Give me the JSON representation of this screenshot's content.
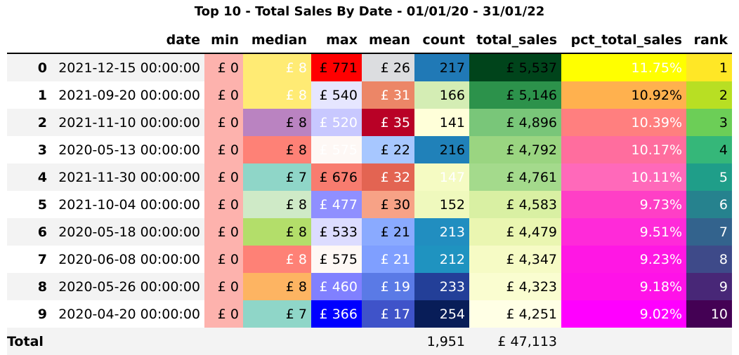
{
  "chart_data": {
    "type": "table",
    "title": "Top 10 - Total Sales By Date - 01/01/20 - 31/01/22",
    "columns": [
      "",
      "date",
      "min",
      "median",
      "max",
      "mean",
      "count",
      "total_sales",
      "pct_total_sales",
      "rank"
    ],
    "rows": [
      {
        "index": "0",
        "cells": [
          "2021-12-15 00:00:00",
          "£ 0",
          "£ 8",
          "£ 771",
          "£ 26",
          "217",
          "£ 5,537",
          "11.75%",
          "1"
        ]
      },
      {
        "index": "1",
        "cells": [
          "2021-09-20 00:00:00",
          "£ 0",
          "£ 8",
          "£ 540",
          "£ 31",
          "166",
          "£ 5,146",
          "10.92%",
          "2"
        ]
      },
      {
        "index": "2",
        "cells": [
          "2021-11-10 00:00:00",
          "£ 0",
          "£ 8",
          "£ 520",
          "£ 35",
          "141",
          "£ 4,896",
          "10.39%",
          "3"
        ]
      },
      {
        "index": "3",
        "cells": [
          "2020-05-13 00:00:00",
          "£ 0",
          "£ 8",
          "£ 575",
          "£ 22",
          "216",
          "£ 4,792",
          "10.17%",
          "4"
        ]
      },
      {
        "index": "4",
        "cells": [
          "2021-11-30 00:00:00",
          "£ 0",
          "£ 7",
          "£ 676",
          "£ 32",
          "147",
          "£ 4,761",
          "10.11%",
          "5"
        ]
      },
      {
        "index": "5",
        "cells": [
          "2021-10-04 00:00:00",
          "£ 0",
          "£ 8",
          "£ 477",
          "£ 30",
          "152",
          "£ 4,583",
          "9.73%",
          "6"
        ]
      },
      {
        "index": "6",
        "cells": [
          "2020-05-18 00:00:00",
          "£ 0",
          "£ 8",
          "£ 533",
          "£ 21",
          "213",
          "£ 4,479",
          "9.51%",
          "7"
        ]
      },
      {
        "index": "7",
        "cells": [
          "2020-06-08 00:00:00",
          "£ 0",
          "£ 8",
          "£ 575",
          "£ 21",
          "212",
          "£ 4,347",
          "9.23%",
          "8"
        ]
      },
      {
        "index": "8",
        "cells": [
          "2020-05-26 00:00:00",
          "£ 0",
          "£ 8",
          "£ 460",
          "£ 19",
          "233",
          "£ 4,323",
          "9.18%",
          "9"
        ]
      },
      {
        "index": "9",
        "cells": [
          "2020-04-20 00:00:00",
          "£ 0",
          "£ 7",
          "£ 366",
          "£ 17",
          "254",
          "£ 4,251",
          "9.02%",
          "10"
        ]
      }
    ],
    "footer": {
      "label": "Total",
      "cells": [
        "",
        "",
        "",
        "",
        "",
        "1,951",
        "£ 47,113",
        "",
        ""
      ]
    },
    "cell_colors": [
      [
        "",
        "#fdb2ad",
        "#ffeb74",
        "#ff0000",
        "#dcdde0",
        "#2079b6",
        "#00441b",
        "#ffff00",
        "#ffe726"
      ],
      [
        "",
        "#fdb2ad",
        "#ffeb74",
        "#e6e6ff",
        "#ec8667",
        "#d4edb4",
        "#2c924b",
        "#ffb14e",
        "#b8df23"
      ],
      [
        "",
        "#fdb2ad",
        "#ba83c1",
        "#c8c8ff",
        "#b90126",
        "#ffffd9",
        "#79c679",
        "#ff7f7f",
        "#6cce57"
      ],
      [
        "",
        "#fdb2ad",
        "#fe8176",
        "#fef8f5",
        "#a7c7ff",
        "#2081b9",
        "#9ad581",
        "#ff6d9e",
        "#35b779"
      ],
      [
        "",
        "#fdb2ad",
        "#8fd6c8",
        "#f87c6f",
        "#e36452",
        "#f5fbc3",
        "#a4da8c",
        "#ff69ba",
        "#1f9e89"
      ],
      [
        "",
        "#fdb2ad",
        "#cfeac7",
        "#8f8fff",
        "#f7a286",
        "#eff9bd",
        "#d9f0a3",
        "#ff3fc6",
        "#26828e"
      ],
      [
        "",
        "#fdb2ad",
        "#b3de6a",
        "#dcdcff",
        "#8aaaff",
        "#218ec0",
        "#eaf6b1",
        "#ff2ad9",
        "#33638d"
      ],
      [
        "",
        "#fdb2ad",
        "#fe8176",
        "#fef8f5",
        "#7f9fff",
        "#1f93c0",
        "#f6fbc5",
        "#ff17e4",
        "#3e4a89"
      ],
      [
        "",
        "#fdb2ad",
        "#fdb462",
        "#8080ff",
        "#5a7ae6",
        "#233f98",
        "#fafdd0",
        "#ff12e8",
        "#482777"
      ],
      [
        "",
        "#fdb2ad",
        "#8fd6c8",
        "#0000ff",
        "#3f53c9",
        "#081d58",
        "#ffffe5",
        "#ff00ff",
        "#440154"
      ]
    ],
    "light_text_cells": [
      [
        2,
        0
      ],
      [
        7,
        0
      ],
      [
        2,
        1
      ],
      [
        4,
        1
      ],
      [
        3,
        2
      ],
      [
        4,
        2
      ],
      [
        7,
        2
      ],
      [
        3,
        3
      ],
      [
        7,
        3
      ],
      [
        4,
        4
      ],
      [
        5,
        4
      ],
      [
        7,
        4
      ],
      [
        8,
        4
      ],
      [
        3,
        5
      ],
      [
        7,
        5
      ],
      [
        8,
        5
      ],
      [
        5,
        6
      ],
      [
        7,
        6
      ],
      [
        8,
        6
      ],
      [
        2,
        7
      ],
      [
        4,
        7
      ],
      [
        5,
        7
      ],
      [
        7,
        7
      ],
      [
        8,
        7
      ],
      [
        3,
        8
      ],
      [
        4,
        8
      ],
      [
        5,
        8
      ],
      [
        7,
        8
      ],
      [
        8,
        8
      ],
      [
        3,
        9
      ],
      [
        4,
        9
      ],
      [
        5,
        9
      ],
      [
        7,
        9
      ],
      [
        8,
        9
      ]
    ]
  }
}
